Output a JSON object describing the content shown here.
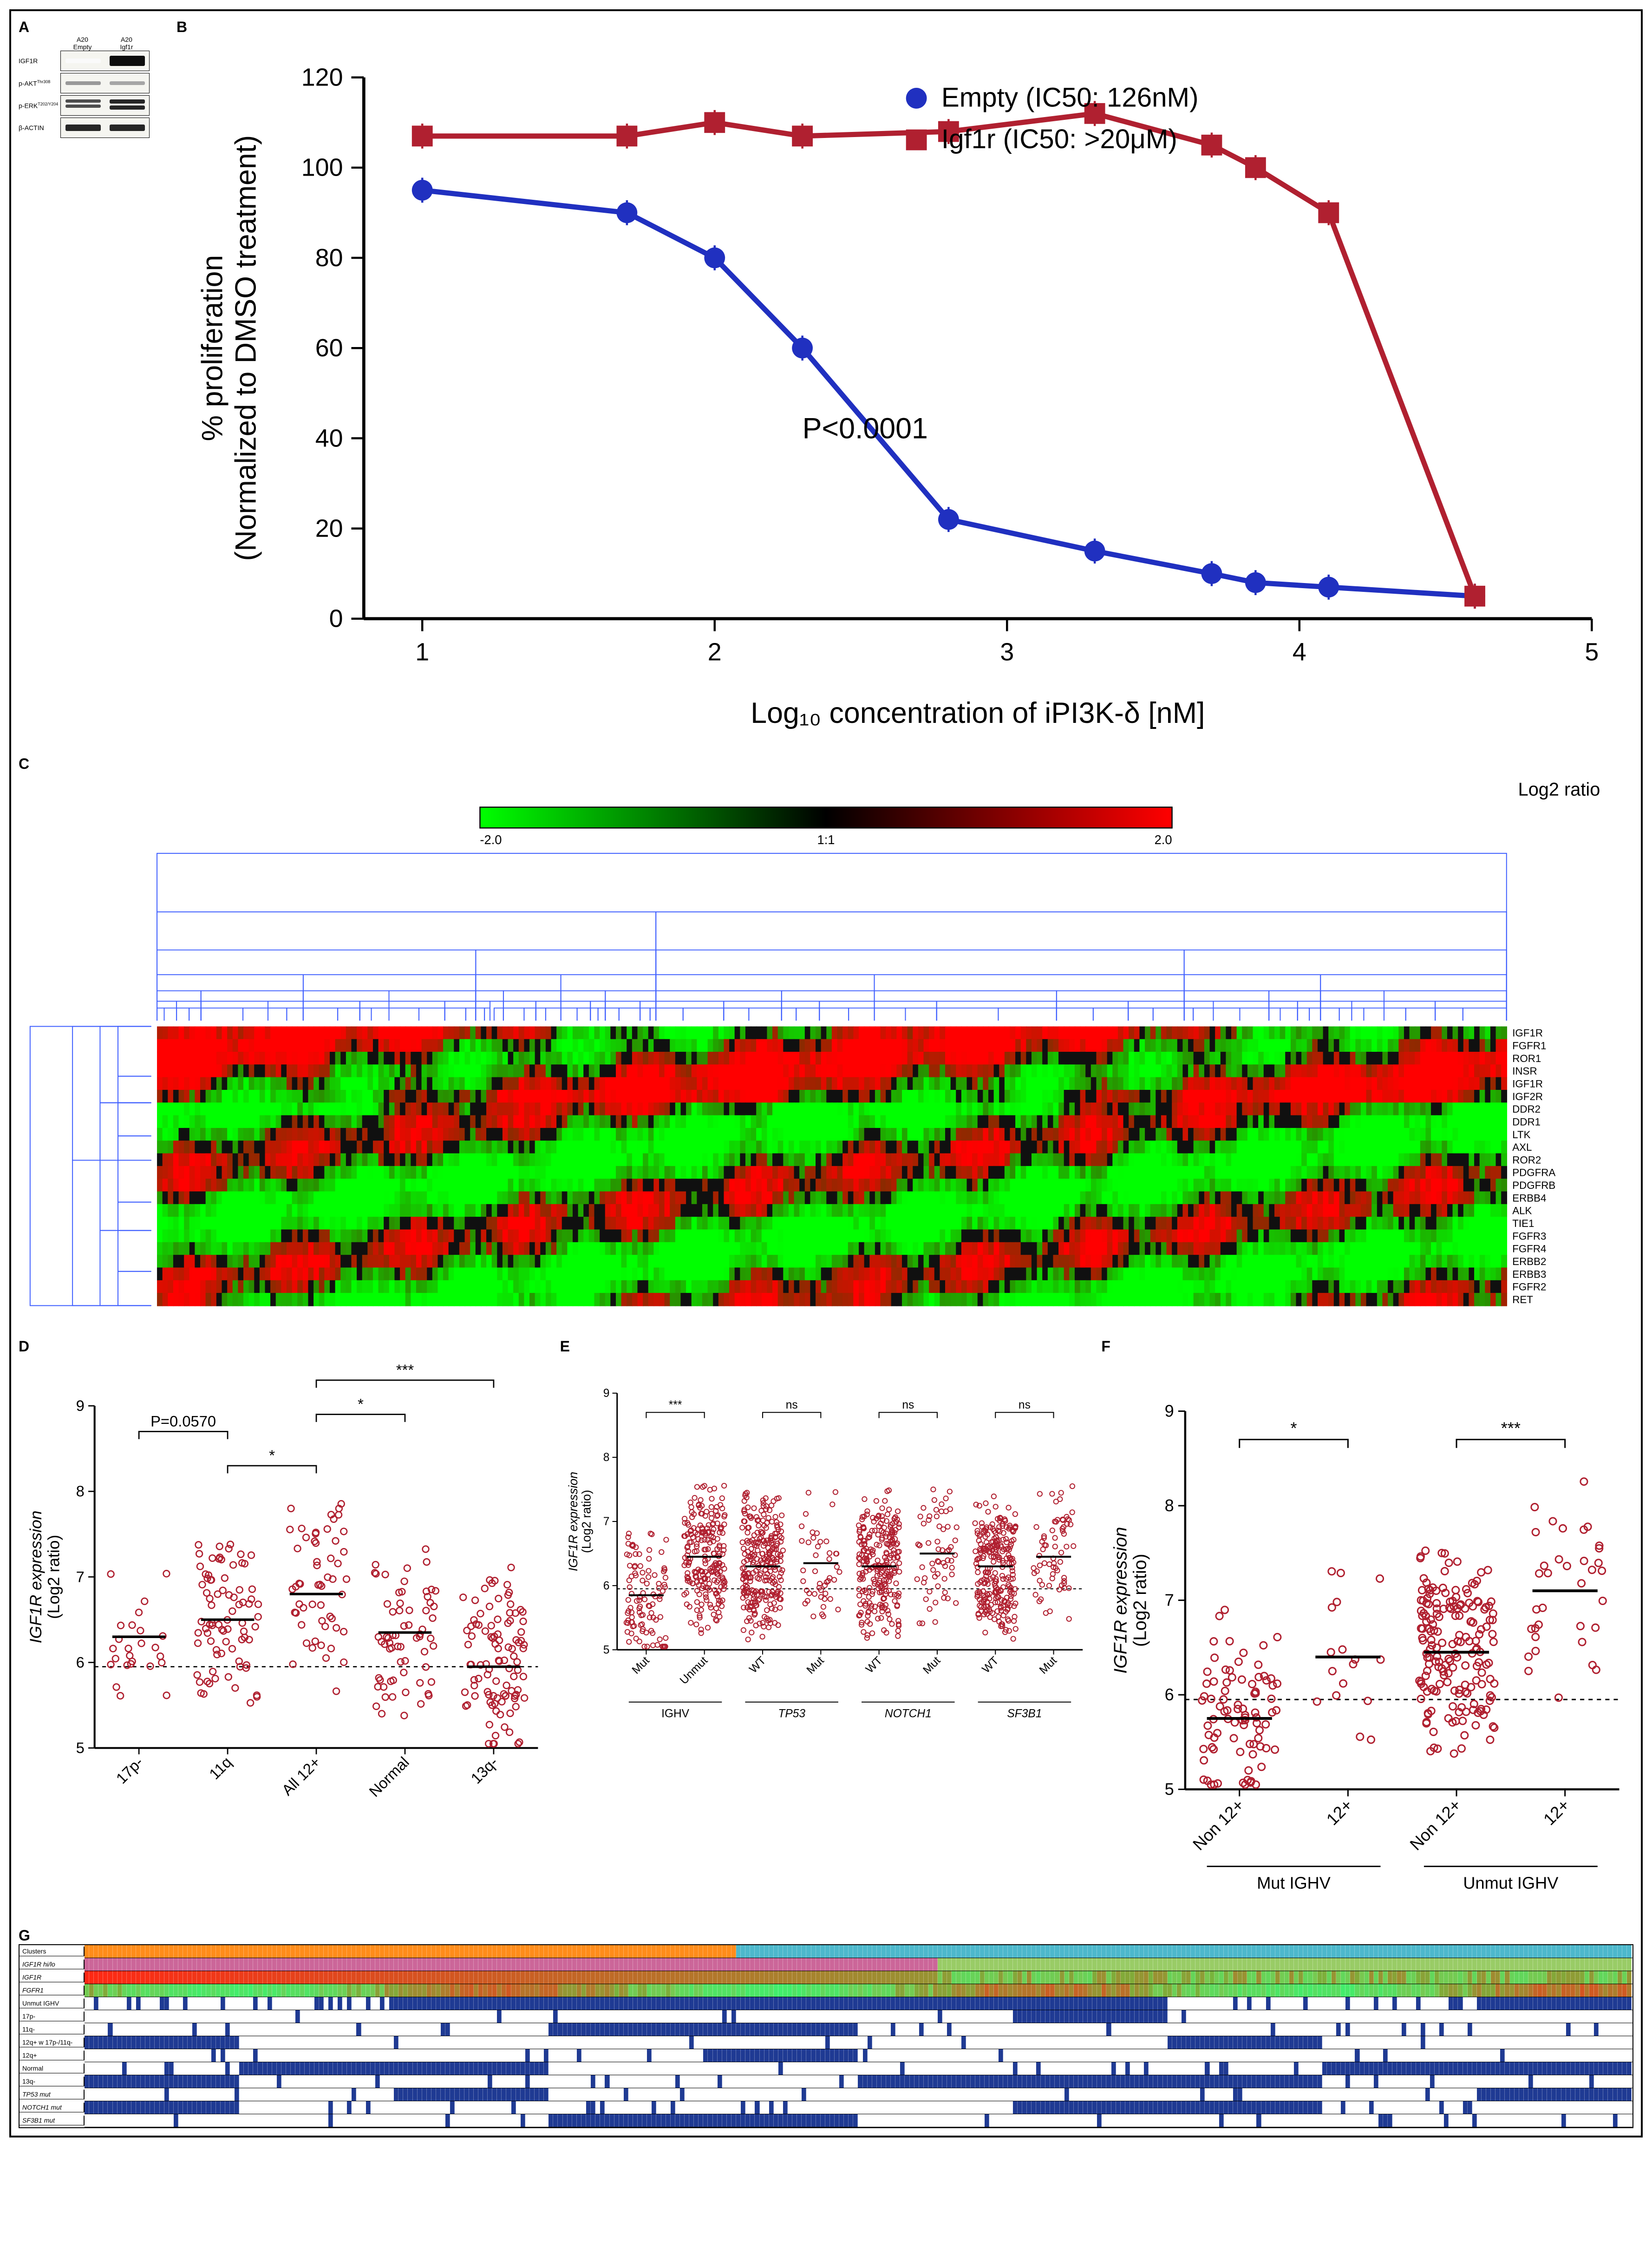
{
  "panelA": {
    "label": "A",
    "columns": [
      "A20\nEmpty",
      "A20\nIgf1r"
    ],
    "rows": [
      {
        "label": "IGF1R",
        "bands": [
          {
            "intensity": 0.02,
            "height": 10
          },
          {
            "intensity": 0.95,
            "height": 22
          }
        ]
      },
      {
        "label": "p-AKT",
        "sup": "Thr308",
        "bands": [
          {
            "intensity": 0.4,
            "height": 8
          },
          {
            "intensity": 0.35,
            "height": 8
          }
        ]
      },
      {
        "label": "p-ERK",
        "sup": "T202/Y204",
        "bands": [
          {
            "intensity": 0.7,
            "height": 14,
            "double": true
          },
          {
            "intensity": 0.85,
            "height": 18,
            "double": true
          }
        ]
      },
      {
        "label": "β-ACTIN",
        "bands": [
          {
            "intensity": 0.85,
            "height": 14
          },
          {
            "intensity": 0.85,
            "height": 14
          }
        ]
      }
    ]
  },
  "panelB": {
    "label": "B",
    "series": [
      {
        "name": "Empty (IC50: 126nM)",
        "color": "#2030c0",
        "marker": "circle",
        "x": [
          1.0,
          1.7,
          2.0,
          2.3,
          2.8,
          3.3,
          3.7,
          3.85,
          4.1,
          4.6
        ],
        "y": [
          95,
          90,
          80,
          60,
          22,
          15,
          10,
          8,
          7,
          5
        ]
      },
      {
        "name": "Igf1r (IC50: >20μM)",
        "color": "#b02030",
        "marker": "square",
        "x": [
          1.0,
          1.7,
          2.0,
          2.3,
          2.8,
          3.3,
          3.7,
          3.85,
          4.1,
          4.6
        ],
        "y": [
          107,
          107,
          110,
          107,
          108,
          112,
          105,
          100,
          90,
          5
        ]
      }
    ],
    "pvalue": "P<0.0001",
    "xlabel": "Log₁₀ concentration of iPI3K-δ [nM]",
    "ylabel": "% proliferation\n(Normalized to DMSO treatment)",
    "xlim": [
      0.8,
      5.0
    ],
    "ylim": [
      0,
      120
    ],
    "xticks": [
      1,
      2,
      3,
      4,
      5
    ],
    "yticks": [
      0,
      20,
      40,
      60,
      80,
      100,
      120
    ],
    "label_fontsize": 14,
    "tick_fontsize": 12,
    "legend_fontsize": 13
  },
  "panelC": {
    "label": "C",
    "colorbar_label": "Log2 ratio",
    "colorbar_ticks": [
      "-2.0",
      "1:1",
      "2.0"
    ],
    "genes": [
      "IGF1R",
      "FGFR1",
      "ROR1",
      "INSR",
      "IGF1R",
      "IGF2R",
      "DDR2",
      "DDR1",
      "LTK",
      "AXL",
      "ROR2",
      "PDGFRA",
      "PDGFRB",
      "ERBB4",
      "ALK",
      "TIE1",
      "FGFR3",
      "FGFR4",
      "ERBB2",
      "ERBB3",
      "FGFR2",
      "RET"
    ]
  },
  "scatterCommon": {
    "ylabel": "IGF1R expression\n(Log2 ratio)",
    "ylim": [
      5,
      9
    ],
    "yticks": [
      5,
      6,
      7,
      8,
      9
    ],
    "dotted_y": 5.95,
    "point_color": "#b02030",
    "label_fontsize": 14
  },
  "panelD": {
    "label": "D",
    "groups": [
      "17p-",
      "11q",
      "All 12+",
      "Normal",
      "13q-"
    ],
    "means": [
      6.3,
      6.5,
      6.8,
      6.35,
      5.95
    ],
    "sig": [
      {
        "from": 0,
        "to": 1,
        "label": "P=0.0570",
        "h": 8.7
      },
      {
        "from": 1,
        "to": 2,
        "label": "*",
        "h": 8.3
      },
      {
        "from": 2,
        "to": 3,
        "label": "*",
        "h": 8.9
      },
      {
        "from": 2,
        "to": 4,
        "label": "***",
        "h": 9.3
      }
    ],
    "counts": [
      25,
      80,
      55,
      65,
      100
    ]
  },
  "panelE": {
    "label": "E",
    "groups": [
      "Mut",
      "Unmut",
      "WT",
      "Mut",
      "WT",
      "Mut",
      "WT",
      "Mut"
    ],
    "subgroups": [
      "IGHV",
      "TP53",
      "NOTCH1",
      "SF3B1"
    ],
    "means": [
      5.85,
      6.45,
      6.3,
      6.35,
      6.3,
      6.5,
      6.3,
      6.45
    ],
    "sig": [
      {
        "from": 0,
        "to": 1,
        "label": "***",
        "h": 8.7
      },
      {
        "from": 2,
        "to": 3,
        "label": "ns",
        "h": 8.7
      },
      {
        "from": 4,
        "to": 5,
        "label": "ns",
        "h": 8.7
      },
      {
        "from": 6,
        "to": 7,
        "label": "ns",
        "h": 8.7
      }
    ],
    "counts": [
      100,
      220,
      270,
      45,
      250,
      60,
      260,
      65
    ]
  },
  "panelF": {
    "label": "F",
    "groups": [
      "Non 12+",
      "12+",
      "Non 12+",
      "12+"
    ],
    "subgroups": [
      "Mut IGHV",
      "Unmut IGHV"
    ],
    "means": [
      5.75,
      6.4,
      6.45,
      7.1
    ],
    "sig": [
      {
        "from": 0,
        "to": 1,
        "label": "*",
        "h": 8.7
      },
      {
        "from": 2,
        "to": 3,
        "label": "***",
        "h": 8.7
      }
    ],
    "counts": [
      85,
      17,
      180,
      35
    ]
  },
  "panelG": {
    "label": "G",
    "n_samples": 330,
    "rows": [
      {
        "label": "Clusters",
        "type": "categorical",
        "palette": [
          "#ff8c1a",
          "#4db8cc"
        ],
        "breaks": [
          0.42
        ]
      },
      {
        "label": "IGF1R hi/lo",
        "italic": true,
        "type": "categorical",
        "palette": [
          "#cc6699",
          "#99cc66"
        ],
        "breaks": [
          0.55
        ]
      },
      {
        "label": "IGF1R",
        "italic": true,
        "type": "gradient",
        "high": "#ff2020",
        "low": "#40ff40"
      },
      {
        "label": "FGFR1",
        "italic": true,
        "type": "gradient",
        "high": "#ff6030",
        "low": "#60ff60"
      },
      {
        "label": "Unmut IGHV",
        "type": "binary",
        "fill": "#1f3a93",
        "density": 0.65
      },
      {
        "label": "17p-",
        "type": "binary",
        "fill": "#1f3a93",
        "density": 0.1
      },
      {
        "label": "11q-",
        "type": "binary",
        "fill": "#1f3a93",
        "density": 0.2
      },
      {
        "label": "12q+ w 17p-/11q-",
        "type": "binary",
        "fill": "#1f3a93",
        "density": 0.04
      },
      {
        "label": "12q+",
        "type": "binary",
        "fill": "#1f3a93",
        "density": 0.12
      },
      {
        "label": "Normal",
        "type": "binary",
        "fill": "#1f3a93",
        "density": 0.2
      },
      {
        "label": "13q-",
        "type": "binary",
        "fill": "#1f3a93",
        "density": 0.32
      },
      {
        "label": "TP53 mut",
        "italic": true,
        "type": "binary",
        "fill": "#1f3a93",
        "density": 0.14
      },
      {
        "label": "NOTCH1 mut",
        "italic": true,
        "type": "binary",
        "fill": "#1f3a93",
        "density": 0.2
      },
      {
        "label": "SF3B1 mut",
        "italic": true,
        "type": "binary",
        "fill": "#1f3a93",
        "density": 0.2
      }
    ]
  }
}
